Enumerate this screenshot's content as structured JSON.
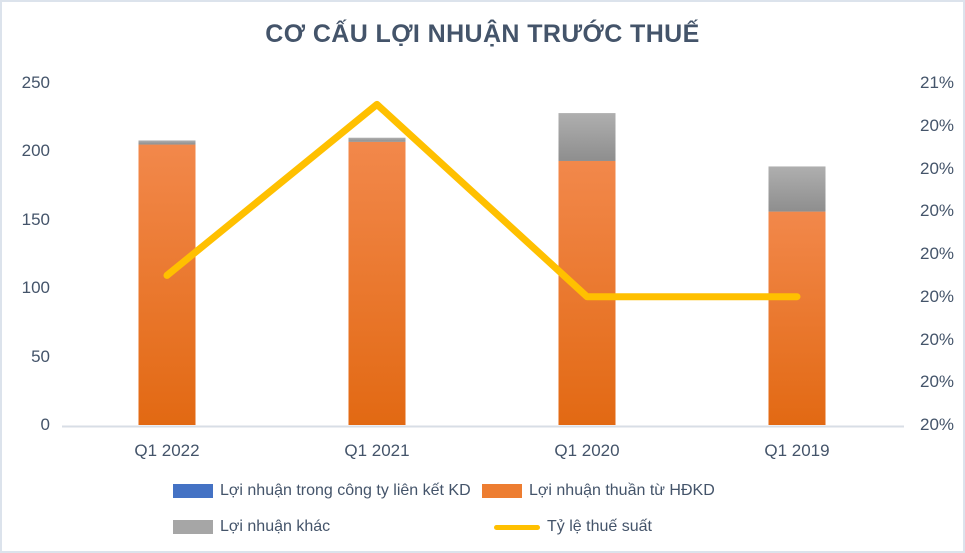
{
  "title": "CƠ CẤU LỢI NHUẬN TRƯỚC THUẾ",
  "chart_data": {
    "type": "bar",
    "subtype": "stacked-columns-with-line-overlay",
    "title": "CƠ CẤU LỢI NHUẬN TRƯỚC THUẾ",
    "categories": [
      "Q1 2022",
      "Q1 2021",
      "Q1 2020",
      "Q1 2019"
    ],
    "series": [
      {
        "name": "Lợi nhuận trong công ty liên kết KD",
        "type": "bar",
        "color": "#4472C4",
        "values": [
          0,
          0,
          0,
          0
        ]
      },
      {
        "name": "Lợi nhuận thuần từ HĐKD",
        "type": "bar",
        "color": "#ED7D31",
        "values": [
          205,
          207,
          193,
          156
        ]
      },
      {
        "name": "Lợi nhuận khác",
        "type": "bar",
        "color": "#A6A6A6",
        "values": [
          3,
          3,
          35,
          33
        ]
      },
      {
        "name": "Tỷ lệ thuế suất",
        "type": "line",
        "axis": "right",
        "color": "#FFC000",
        "values": [
          20.05,
          20.45,
          20.0,
          20.0
        ]
      }
    ],
    "left_axis": {
      "min": 0,
      "max": 250,
      "tick_labels": [
        "250",
        "200",
        "150",
        "100",
        "50",
        "0"
      ]
    },
    "right_axis": {
      "min": 19.7,
      "max": 20.5,
      "unit": "%",
      "tick_labels": [
        "21%",
        "20%",
        "20%",
        "20%",
        "20%",
        "20%",
        "20%",
        "20%",
        "20%"
      ]
    },
    "grid": false,
    "legend_position": "bottom"
  },
  "legend": {
    "items": [
      {
        "label": "Lợi nhuận trong công ty liên kết KD",
        "marker": "square",
        "color": "#4472C4"
      },
      {
        "label": "Lợi nhuận thuần từ HĐKD",
        "marker": "square",
        "color": "#ED7D31"
      },
      {
        "label": "Lợi nhuận khác",
        "marker": "square",
        "color": "#A6A6A6"
      },
      {
        "label": "Tỷ lệ thuế suất",
        "marker": "line",
        "color": "#FFC000"
      }
    ]
  },
  "colors": {
    "title_text": "#44546A",
    "axis_text": "#44546A",
    "axis_line": "#D8DEE6",
    "border": "#DCE3EC",
    "bar_orange_top": "#F2884B",
    "bar_orange_bottom": "#E26913",
    "bar_gray_top": "#AFAFAF",
    "bar_gray_bottom": "#8E8E8E",
    "bar_blue": "#4472C4",
    "line_yellow": "#FFC000"
  }
}
